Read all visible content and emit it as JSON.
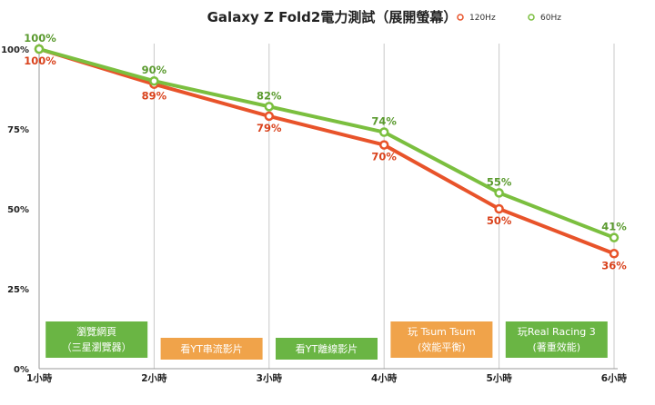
{
  "colors": {
    "series_120": "#e8532a",
    "series_60": "#7bbf3f",
    "label_120": "#d9421c",
    "label_60": "#5a9a2e",
    "box_green": "#6ab544",
    "box_orange": "#f0a34a",
    "grid": "#c9c9c9",
    "axis": "#9a9a9a"
  },
  "chart_data": {
    "type": "line",
    "title": "Galaxy Z Fold2電力測試（展開螢幕）",
    "categories": [
      "1小時",
      "2小時",
      "3小時",
      "4小時",
      "5小時",
      "6小時"
    ],
    "series": [
      {
        "name": "120Hz",
        "values": [
          100,
          89,
          79,
          70,
          50,
          36
        ],
        "labels": [
          "100%",
          "89%",
          "79%",
          "70%",
          "50%",
          "36%"
        ]
      },
      {
        "name": "60Hz",
        "values": [
          100,
          90,
          82,
          74,
          55,
          41
        ],
        "labels": [
          "100%",
          "90%",
          "82%",
          "74%",
          "55%",
          "41%"
        ]
      }
    ],
    "ylim": [
      0,
      100
    ],
    "yticks": [
      0,
      25,
      50,
      75,
      100
    ],
    "ytick_labels": [
      "0%",
      "25%",
      "50%",
      "75%",
      "100%"
    ],
    "grid": "vertical lines at categories",
    "legend": "top-right",
    "annotations": [
      {
        "lines": [
          "瀏覽網頁",
          "（三星瀏覽器）"
        ],
        "color": "green"
      },
      {
        "lines": [
          "看YT串流影片"
        ],
        "color": "orange"
      },
      {
        "lines": [
          "看YT離線影片"
        ],
        "color": "green"
      },
      {
        "lines": [
          "玩 Tsum Tsum",
          "(效能平衡)"
        ],
        "color": "orange"
      },
      {
        "lines": [
          "玩Real Racing 3",
          "(著重效能)"
        ],
        "color": "green"
      }
    ]
  }
}
